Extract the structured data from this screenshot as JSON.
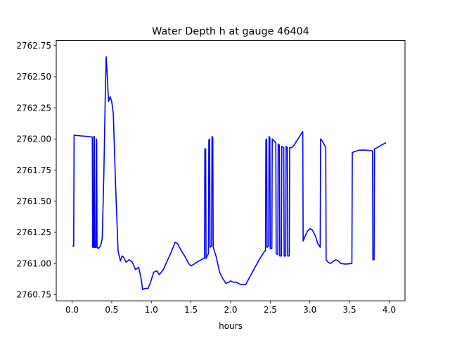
{
  "chart_data": {
    "type": "line",
    "title": "Water Depth h at gauge 46404",
    "xlabel": "hours",
    "ylabel": "",
    "xlim": [
      -0.2,
      4.2
    ],
    "ylim": [
      2760.7,
      2762.79
    ],
    "xticks": [
      0.0,
      0.5,
      1.0,
      1.5,
      2.0,
      2.5,
      3.0,
      3.5,
      4.0
    ],
    "xtick_labels": [
      "0.0",
      "0.5",
      "1.0",
      "1.5",
      "2.0",
      "2.5",
      "3.0",
      "3.5",
      "4.0"
    ],
    "yticks": [
      2760.75,
      2761.0,
      2761.25,
      2761.5,
      2761.75,
      2762.0,
      2762.25,
      2762.5,
      2762.75
    ],
    "ytick_labels": [
      "2760.75",
      "2761.00",
      "2761.25",
      "2761.50",
      "2761.75",
      "2762.00",
      "2762.25",
      "2762.50",
      "2762.75"
    ],
    "line_color": "#0000ff",
    "grid": false,
    "series": [
      {
        "points": [
          [
            0.0,
            2761.14
          ],
          [
            0.02,
            2761.14
          ],
          [
            0.025,
            2762.03
          ],
          [
            0.1,
            2762.025
          ],
          [
            0.2,
            2762.02
          ],
          [
            0.255,
            2762.015
          ],
          [
            0.26,
            2761.13
          ],
          [
            0.27,
            2761.13
          ],
          [
            0.275,
            2762.02
          ],
          [
            0.28,
            2762.02
          ],
          [
            0.285,
            2761.13
          ],
          [
            0.3,
            2761.13
          ],
          [
            0.305,
            2762.0
          ],
          [
            0.31,
            2761.99
          ],
          [
            0.315,
            2761.13
          ],
          [
            0.33,
            2761.12
          ],
          [
            0.36,
            2761.14
          ],
          [
            0.38,
            2761.2
          ],
          [
            0.4,
            2761.7
          ],
          [
            0.42,
            2762.4
          ],
          [
            0.43,
            2762.66
          ],
          [
            0.44,
            2762.55
          ],
          [
            0.46,
            2762.3
          ],
          [
            0.48,
            2762.34
          ],
          [
            0.5,
            2762.3
          ],
          [
            0.52,
            2762.2
          ],
          [
            0.55,
            2761.6
          ],
          [
            0.58,
            2761.1
          ],
          [
            0.61,
            2761.02
          ],
          [
            0.63,
            2761.06
          ],
          [
            0.65,
            2761.05
          ],
          [
            0.68,
            2761.01
          ],
          [
            0.72,
            2761.03
          ],
          [
            0.76,
            2761.01
          ],
          [
            0.8,
            2760.95
          ],
          [
            0.84,
            2760.97
          ],
          [
            0.87,
            2760.88
          ],
          [
            0.89,
            2760.79
          ],
          [
            0.92,
            2760.8
          ],
          [
            0.96,
            2760.8
          ],
          [
            0.99,
            2760.85
          ],
          [
            1.03,
            2760.93
          ],
          [
            1.07,
            2760.94
          ],
          [
            1.1,
            2760.91
          ],
          [
            1.15,
            2760.95
          ],
          [
            1.2,
            2761.02
          ],
          [
            1.25,
            2761.09
          ],
          [
            1.3,
            2761.17
          ],
          [
            1.33,
            2761.16
          ],
          [
            1.37,
            2761.11
          ],
          [
            1.42,
            2761.06
          ],
          [
            1.47,
            2761.0
          ],
          [
            1.5,
            2760.98
          ],
          [
            1.55,
            2761.0
          ],
          [
            1.6,
            2761.02
          ],
          [
            1.66,
            2761.04
          ],
          [
            1.67,
            2761.04
          ],
          [
            1.675,
            2761.92
          ],
          [
            1.685,
            2761.92
          ],
          [
            1.69,
            2761.04
          ],
          [
            1.72,
            2761.08
          ],
          [
            1.725,
            2761.99
          ],
          [
            1.735,
            2762.0
          ],
          [
            1.74,
            2761.13
          ],
          [
            1.76,
            2761.14
          ],
          [
            1.765,
            2762.02
          ],
          [
            1.775,
            2762.01
          ],
          [
            1.78,
            2761.13
          ],
          [
            1.82,
            2761.05
          ],
          [
            1.86,
            2760.93
          ],
          [
            1.9,
            2760.88
          ],
          [
            1.94,
            2760.84
          ],
          [
            1.98,
            2760.85
          ],
          [
            2.0,
            2760.86
          ],
          [
            2.03,
            2760.85
          ],
          [
            2.06,
            2760.85
          ],
          [
            2.1,
            2760.84
          ],
          [
            2.13,
            2760.83
          ],
          [
            2.16,
            2760.83
          ],
          [
            2.19,
            2760.83
          ],
          [
            2.24,
            2760.89
          ],
          [
            2.3,
            2760.96
          ],
          [
            2.36,
            2761.03
          ],
          [
            2.43,
            2761.1
          ],
          [
            2.44,
            2761.1
          ],
          [
            2.445,
            2761.99
          ],
          [
            2.455,
            2762.0
          ],
          [
            2.46,
            2761.13
          ],
          [
            2.48,
            2761.14
          ],
          [
            2.485,
            2762.02
          ],
          [
            2.495,
            2762.01
          ],
          [
            2.5,
            2761.12
          ],
          [
            2.52,
            2761.12
          ],
          [
            2.525,
            2762.0
          ],
          [
            2.54,
            2761.99
          ],
          [
            2.57,
            2761.97
          ],
          [
            2.575,
            2761.08
          ],
          [
            2.595,
            2761.07
          ],
          [
            2.6,
            2761.96
          ],
          [
            2.615,
            2761.95
          ],
          [
            2.62,
            2761.06
          ],
          [
            2.64,
            2761.06
          ],
          [
            2.645,
            2761.94
          ],
          [
            2.67,
            2761.93
          ],
          [
            2.675,
            2761.06
          ],
          [
            2.695,
            2761.06
          ],
          [
            2.7,
            2761.94
          ],
          [
            2.715,
            2761.93
          ],
          [
            2.72,
            2761.06
          ],
          [
            2.74,
            2761.06
          ],
          [
            2.745,
            2761.93
          ],
          [
            2.77,
            2761.93
          ],
          [
            2.8,
            2761.95
          ],
          [
            2.84,
            2761.99
          ],
          [
            2.88,
            2762.03
          ],
          [
            2.91,
            2762.06
          ],
          [
            2.915,
            2761.18
          ],
          [
            2.94,
            2761.22
          ],
          [
            2.97,
            2761.26
          ],
          [
            3.0,
            2761.28
          ],
          [
            3.03,
            2761.27
          ],
          [
            3.07,
            2761.22
          ],
          [
            3.1,
            2761.16
          ],
          [
            3.13,
            2761.13
          ],
          [
            3.135,
            2762.0
          ],
          [
            3.16,
            2761.98
          ],
          [
            3.2,
            2761.93
          ],
          [
            3.205,
            2761.03
          ],
          [
            3.23,
            2761.01
          ],
          [
            3.26,
            2761.0
          ],
          [
            3.3,
            2761.02
          ],
          [
            3.33,
            2761.03
          ],
          [
            3.36,
            2761.02
          ],
          [
            3.39,
            2761.0
          ],
          [
            3.45,
            2760.995
          ],
          [
            3.53,
            2761.0
          ],
          [
            3.535,
            2761.89
          ],
          [
            3.57,
            2761.9
          ],
          [
            3.62,
            2761.91
          ],
          [
            3.7,
            2761.91
          ],
          [
            3.79,
            2761.905
          ],
          [
            3.795,
            2761.03
          ],
          [
            3.81,
            2761.03
          ],
          [
            3.815,
            2761.92
          ],
          [
            3.85,
            2761.93
          ],
          [
            3.9,
            2761.95
          ],
          [
            3.96,
            2761.97
          ]
        ]
      }
    ]
  }
}
